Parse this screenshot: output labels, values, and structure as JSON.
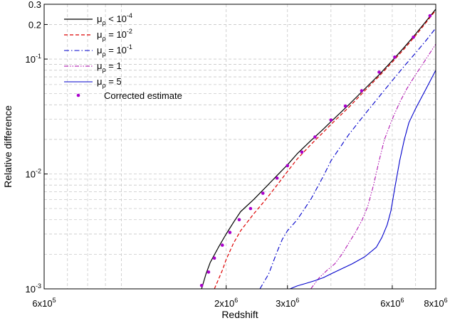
{
  "chart_data": {
    "type": "line",
    "xlabel": "Redshift",
    "ylabel": "Relative difference",
    "xscale": "log",
    "yscale": "log",
    "xlim": [
      600000,
      8000000
    ],
    "ylim": [
      0.001,
      0.3
    ],
    "grid": true,
    "legend_position": "top-left",
    "x_tick_labels": [
      {
        "value": 600000,
        "base": "6x10",
        "exp": "5"
      },
      {
        "value": 2000000,
        "base": "2x10",
        "exp": "6"
      },
      {
        "value": 3000000,
        "base": "3x10",
        "exp": "6"
      },
      {
        "value": 6000000,
        "base": "6x10",
        "exp": "6"
      },
      {
        "value": 8000000,
        "base": "8x10",
        "exp": "6"
      }
    ],
    "y_tick_labels": [
      {
        "value": 0.001,
        "base": "10",
        "exp": "-3"
      },
      {
        "value": 0.01,
        "base": "10",
        "exp": "-2"
      },
      {
        "value": 0.1,
        "base": "10",
        "exp": "-1"
      },
      {
        "value": 0.2,
        "base": "0.2",
        "exp": ""
      },
      {
        "value": 0.3,
        "base": "0.3",
        "exp": ""
      }
    ],
    "series": [
      {
        "name_main": "μ",
        "name_sub": "ρ",
        "name_rest": " < 10",
        "name_sup": "-4",
        "color": "#000000",
        "dash": "",
        "width": 1.2,
        "x": [
          1700000,
          1750000,
          1800000,
          1900000,
          2000000,
          2100000,
          2200000,
          2400000,
          2600000,
          2800000,
          3000000,
          3200000,
          3500000,
          3800000,
          4000000,
          4500000,
          5000000,
          5500000,
          6000000,
          6500000,
          7000000,
          7500000,
          8000000
        ],
        "y": [
          0.001,
          0.00135,
          0.0017,
          0.0023,
          0.003,
          0.0038,
          0.0047,
          0.006,
          0.0077,
          0.0097,
          0.012,
          0.015,
          0.0195,
          0.0245,
          0.0285,
          0.04,
          0.055,
          0.073,
          0.097,
          0.127,
          0.165,
          0.213,
          0.272
        ]
      },
      {
        "name_main": "μ",
        "name_sub": "ρ",
        "name_rest": " = 10",
        "name_sup": "-2",
        "color": "#dd0000",
        "dash": "5,3",
        "width": 1.2,
        "x": [
          1850000,
          1950000,
          2000000,
          2100000,
          2200000,
          2400000,
          2600000,
          2800000,
          3000000,
          3200000,
          3500000,
          3800000,
          4000000,
          4500000,
          5000000,
          5500000,
          6000000,
          6500000,
          7000000,
          7500000,
          8000000
        ],
        "y": [
          0.001,
          0.00145,
          0.0018,
          0.0025,
          0.0032,
          0.0045,
          0.006,
          0.008,
          0.0105,
          0.0135,
          0.018,
          0.023,
          0.027,
          0.038,
          0.053,
          0.071,
          0.094,
          0.123,
          0.16,
          0.208,
          0.266
        ]
      },
      {
        "name_main": "μ",
        "name_sub": "ρ",
        "name_rest": " = 10",
        "name_sup": "-1",
        "color": "#0000cc",
        "dash": "7,3,1.5,3",
        "width": 1.1,
        "x": [
          2500000,
          2650000,
          2800000,
          2900000,
          3000000,
          3200000,
          3500000,
          3800000,
          4000000,
          4500000,
          5000000,
          5500000,
          6000000,
          6500000,
          7000000,
          7500000,
          8000000
        ],
        "y": [
          0.001,
          0.00135,
          0.0021,
          0.0027,
          0.0032,
          0.004,
          0.006,
          0.0095,
          0.013,
          0.022,
          0.033,
          0.047,
          0.065,
          0.087,
          0.113,
          0.145,
          0.186
        ]
      },
      {
        "name_main": "μ",
        "name_sub": "ρ",
        "name_rest": " = 1",
        "name_sup": "",
        "color": "#aa00aa",
        "dash": "6,2,1.5,2,1.5,2",
        "width": 1.0,
        "x": [
          3500000,
          3700000,
          3900000,
          4100000,
          4300000,
          4500000,
          4700000,
          4900000,
          5100000,
          5300000,
          5500000,
          5700000,
          6000000,
          6300000,
          6600000,
          7000000,
          7500000,
          8000000
        ],
        "y": [
          0.001,
          0.00125,
          0.00145,
          0.00165,
          0.002,
          0.0025,
          0.0031,
          0.0039,
          0.0052,
          0.008,
          0.013,
          0.02,
          0.03,
          0.042,
          0.055,
          0.073,
          0.1,
          0.135
        ]
      },
      {
        "name_main": "μ",
        "name_sub": "ρ",
        "name_rest": " = 5",
        "name_sup": "",
        "color": "#0000cc",
        "dash": "",
        "width": 1.1,
        "x": [
          3050000,
          3200000,
          3400000,
          3600000,
          3800000,
          4000000,
          4300000,
          4600000,
          5000000,
          5400000,
          5600000,
          5800000,
          5950000,
          6100000,
          6300000,
          6500000,
          6700000,
          7000000,
          7500000,
          8000000
        ],
        "y": [
          0.001,
          0.00106,
          0.00112,
          0.00118,
          0.00125,
          0.00135,
          0.0015,
          0.00165,
          0.0019,
          0.0023,
          0.0028,
          0.0036,
          0.0048,
          0.0075,
          0.013,
          0.02,
          0.028,
          0.037,
          0.055,
          0.08
        ]
      }
    ],
    "scatter": {
      "name": "Corrected estimate",
      "color": "#aa00cc",
      "x": [
        1700000,
        1780000,
        1850000,
        1950000,
        2050000,
        2180000,
        2350000,
        2550000,
        2800000,
        3000000,
        3300000,
        3600000,
        4000000,
        4400000,
        4900000,
        5500000,
        6100000,
        6900000,
        7700000
      ],
      "y": [
        0.00107,
        0.0014,
        0.00185,
        0.0024,
        0.0031,
        0.004,
        0.005,
        0.0068,
        0.0092,
        0.0118,
        0.0155,
        0.021,
        0.0295,
        0.039,
        0.053,
        0.077,
        0.104,
        0.155,
        0.238
      ]
    }
  }
}
